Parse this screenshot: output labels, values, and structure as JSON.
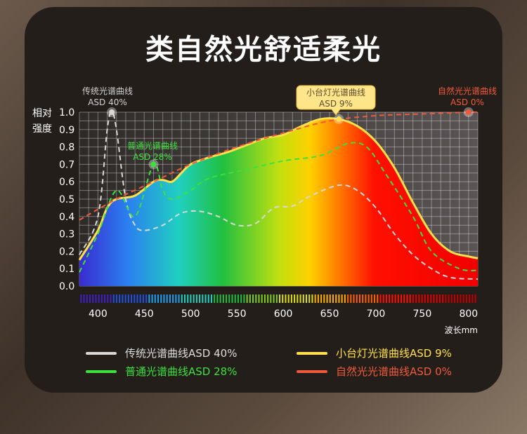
{
  "title": "类自然光舒适柔光",
  "chart_data": {
    "type": "area",
    "ylabel": "相对强度",
    "xlabel": "波长mm",
    "xlim": [
      380,
      810
    ],
    "ylim": [
      0,
      1.0
    ],
    "xticks": [
      400,
      450,
      500,
      550,
      600,
      650,
      700,
      750,
      800
    ],
    "yticks": [
      "0.0",
      "0.1",
      "0.2",
      "0.3",
      "0.4",
      "0.5",
      "0.6",
      "0.7",
      "0.8",
      "0.9",
      "1.0"
    ],
    "grid": true,
    "series": [
      {
        "name": "自然光光谱曲线ASD 0%",
        "label": "自然光光谱曲线",
        "asd": "ASD 0%",
        "color": "#f05a3a",
        "style": "dashed",
        "x": [
          380,
          420,
          460,
          500,
          550,
          600,
          650,
          700,
          750,
          800,
          810
        ],
        "y": [
          0.38,
          0.5,
          0.6,
          0.7,
          0.8,
          0.88,
          0.95,
          0.98,
          0.99,
          1.0,
          1.0
        ]
      },
      {
        "name": "小台灯光谱曲线ASD 9%",
        "label": "小台灯光谱曲线",
        "asd": "ASD 9%",
        "color": "#ffe04a",
        "style": "filled",
        "x": [
          380,
          400,
          410,
          420,
          440,
          460,
          470,
          480,
          490,
          500,
          520,
          540,
          560,
          580,
          600,
          620,
          640,
          660,
          680,
          700,
          720,
          740,
          760,
          780,
          800,
          810
        ],
        "y": [
          0.15,
          0.32,
          0.45,
          0.5,
          0.52,
          0.6,
          0.61,
          0.6,
          0.65,
          0.7,
          0.74,
          0.77,
          0.81,
          0.85,
          0.87,
          0.92,
          0.96,
          0.96,
          0.92,
          0.83,
          0.68,
          0.48,
          0.3,
          0.2,
          0.17,
          0.16
        ]
      },
      {
        "name": "传统光谱曲线ASD 40%",
        "label": "传统光谱曲线",
        "asd": "ASD 40%",
        "color": "#d8d8d8",
        "style": "dashed",
        "x": [
          380,
          400,
          410,
          415,
          420,
          430,
          440,
          450,
          470,
          490,
          510,
          530,
          550,
          570,
          590,
          610,
          630,
          660,
          680,
          700,
          720,
          740,
          760,
          780,
          810
        ],
        "y": [
          0.18,
          0.4,
          0.9,
          1.0,
          0.9,
          0.5,
          0.35,
          0.32,
          0.35,
          0.42,
          0.43,
          0.4,
          0.35,
          0.36,
          0.45,
          0.46,
          0.52,
          0.58,
          0.55,
          0.45,
          0.3,
          0.18,
          0.1,
          0.05,
          0.04
        ]
      },
      {
        "name": "普通光谱曲线ASD 28%",
        "label": "普通光谱曲线",
        "asd": "ASD 28%",
        "color": "#3de03d",
        "style": "dashed",
        "x": [
          380,
          400,
          420,
          440,
          460,
          470,
          480,
          500,
          520,
          560,
          600,
          640,
          670,
          690,
          710,
          740,
          760,
          790,
          810
        ],
        "y": [
          0.08,
          0.3,
          0.55,
          0.4,
          0.7,
          0.55,
          0.5,
          0.55,
          0.62,
          0.67,
          0.72,
          0.75,
          0.82,
          0.8,
          0.65,
          0.4,
          0.2,
          0.1,
          0.09
        ]
      }
    ]
  }
}
